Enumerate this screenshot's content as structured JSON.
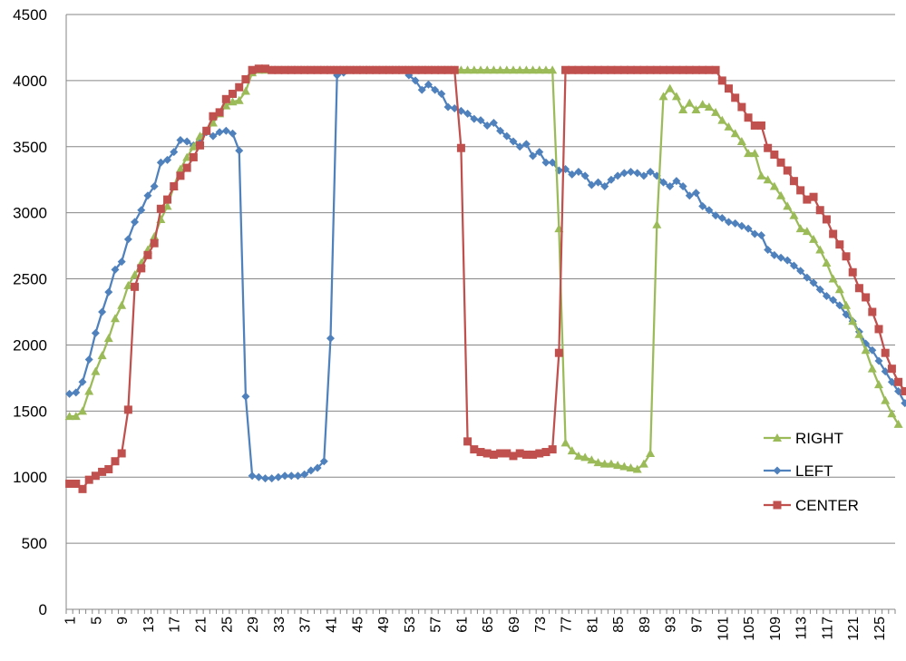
{
  "chart_data": {
    "type": "line",
    "title": "",
    "xlabel": "",
    "ylabel": "",
    "ylim": [
      0,
      4500
    ],
    "yticks": [
      0,
      500,
      1000,
      1500,
      2000,
      2500,
      3000,
      3500,
      4000,
      4500
    ],
    "xlim": [
      1,
      127
    ],
    "xticks": [
      1,
      5,
      9,
      13,
      17,
      21,
      25,
      29,
      33,
      37,
      41,
      45,
      49,
      53,
      57,
      61,
      65,
      69,
      73,
      77,
      81,
      85,
      89,
      93,
      97,
      101,
      105,
      109,
      113,
      117,
      121,
      125
    ],
    "grid": "horizontal",
    "legend": "right, inside plot",
    "series": [
      {
        "name": "RIGHT",
        "color": "#9bbb59",
        "marker": "triangle",
        "values": [
          1460,
          1460,
          1500,
          1650,
          1800,
          1920,
          2050,
          2200,
          2300,
          2450,
          2530,
          2620,
          2720,
          2820,
          2950,
          3050,
          3200,
          3330,
          3420,
          3500,
          3580,
          3620,
          3680,
          3750,
          3810,
          3840,
          3850,
          3920,
          4060,
          4080,
          4080,
          4080,
          4080,
          4080,
          4080,
          4080,
          4080,
          4080,
          4080,
          4080,
          4080,
          4080,
          4080,
          4080,
          4080,
          4080,
          4080,
          4080,
          4080,
          4080,
          4080,
          4080,
          4080,
          4080,
          4080,
          4080,
          4080,
          4080,
          4080,
          4080,
          4080,
          4080,
          4080,
          4080,
          4080,
          4080,
          4080,
          4080,
          4080,
          4080,
          4080,
          4080,
          4080,
          4080,
          4080,
          2880,
          1260,
          1200,
          1160,
          1150,
          1130,
          1110,
          1100,
          1100,
          1090,
          1080,
          1070,
          1060,
          1100,
          1180,
          2910,
          3880,
          3940,
          3880,
          3780,
          3830,
          3780,
          3820,
          3800,
          3760,
          3700,
          3650,
          3600,
          3540,
          3450,
          3450,
          3280,
          3250,
          3200,
          3130,
          3050,
          2980,
          2880,
          2860,
          2800,
          2720,
          2620,
          2500,
          2420,
          2300,
          2180,
          2080,
          1960,
          1820,
          1700,
          1580,
          1480,
          1400
        ]
      },
      {
        "name": "LEFT",
        "color": "#4f81bd",
        "marker": "diamond",
        "values": [
          1630,
          1640,
          1720,
          1890,
          2090,
          2250,
          2400,
          2570,
          2630,
          2800,
          2930,
          3020,
          3130,
          3200,
          3380,
          3400,
          3460,
          3550,
          3540,
          3510,
          3550,
          3610,
          3580,
          3610,
          3620,
          3600,
          3470,
          1610,
          1010,
          1000,
          990,
          990,
          1000,
          1010,
          1010,
          1010,
          1020,
          1050,
          1070,
          1120,
          2050,
          4040,
          4060,
          4080,
          4080,
          4080,
          4080,
          4080,
          4080,
          4080,
          4080,
          4080,
          4040,
          4000,
          3930,
          3970,
          3930,
          3900,
          3800,
          3790,
          3770,
          3750,
          3710,
          3700,
          3660,
          3680,
          3620,
          3580,
          3540,
          3500,
          3520,
          3430,
          3460,
          3380,
          3380,
          3320,
          3330,
          3290,
          3310,
          3280,
          3210,
          3230,
          3200,
          3250,
          3280,
          3300,
          3310,
          3300,
          3280,
          3310,
          3280,
          3230,
          3200,
          3240,
          3200,
          3130,
          3150,
          3050,
          3020,
          2980,
          2960,
          2930,
          2920,
          2900,
          2880,
          2840,
          2830,
          2720,
          2680,
          2660,
          2640,
          2600,
          2560,
          2510,
          2470,
          2420,
          2370,
          2340,
          2300,
          2230,
          2180,
          2100,
          2010,
          1960,
          1880,
          1800,
          1720,
          1650,
          1560
        ]
      },
      {
        "name": "CENTER",
        "color": "#c0504d",
        "marker": "square",
        "values": [
          950,
          950,
          910,
          980,
          1010,
          1040,
          1060,
          1120,
          1180,
          1510,
          2440,
          2580,
          2680,
          2770,
          3030,
          3100,
          3200,
          3280,
          3340,
          3420,
          3510,
          3620,
          3730,
          3760,
          3860,
          3900,
          3950,
          4010,
          4080,
          4090,
          4090,
          4080,
          4080,
          4080,
          4080,
          4080,
          4080,
          4080,
          4080,
          4080,
          4080,
          4080,
          4080,
          4080,
          4080,
          4080,
          4080,
          4080,
          4080,
          4080,
          4080,
          4080,
          4080,
          4080,
          4080,
          4080,
          4080,
          4080,
          4080,
          4080,
          3490,
          1270,
          1210,
          1190,
          1180,
          1170,
          1180,
          1180,
          1160,
          1180,
          1170,
          1170,
          1180,
          1190,
          1210,
          1940,
          4080,
          4080,
          4080,
          4080,
          4080,
          4080,
          4080,
          4080,
          4080,
          4080,
          4080,
          4080,
          4080,
          4080,
          4080,
          4080,
          4080,
          4080,
          4080,
          4080,
          4080,
          4080,
          4080,
          4080,
          4000,
          3940,
          3870,
          3800,
          3720,
          3660,
          3660,
          3490,
          3440,
          3380,
          3320,
          3240,
          3170,
          3100,
          3120,
          3020,
          2950,
          2840,
          2760,
          2670,
          2550,
          2430,
          2360,
          2250,
          2120,
          1940,
          1820,
          1720,
          1650,
          1550
        ]
      }
    ]
  }
}
